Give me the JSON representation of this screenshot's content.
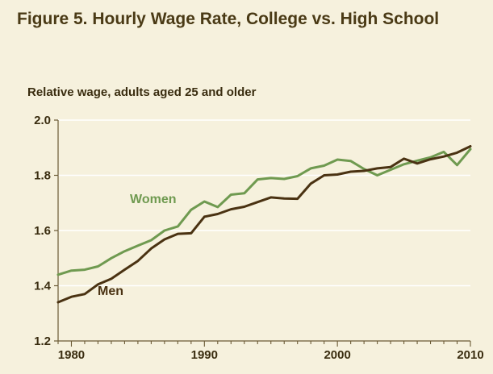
{
  "figure": {
    "title": "Figure 5. Hourly Wage Rate, College vs. High School"
  },
  "colors": {
    "background": "#f6f1dd",
    "women": "#6f9a50",
    "men": "#4a3212",
    "grid": "#ffffff",
    "axis": "#6b5a35"
  },
  "chart_data": {
    "type": "line",
    "title": "Figure 5. Hourly Wage Rate, College vs. High School",
    "ylabel": "Relative wage, adults aged 25 and older",
    "xlabel": "",
    "xlim": [
      1979,
      2010
    ],
    "ylim": [
      1.2,
      2.0
    ],
    "xticks": [
      1980,
      1990,
      2000,
      2010
    ],
    "xtick_labels": [
      "1980",
      "1990",
      "2000",
      "2010"
    ],
    "yticks": [
      1.2,
      1.4,
      1.6,
      1.8,
      2.0
    ],
    "ytick_labels": [
      "1.2",
      "1.4",
      "1.6",
      "1.8",
      "2.0"
    ],
    "grid": true,
    "x": [
      1979,
      1980,
      1981,
      1982,
      1983,
      1984,
      1985,
      1986,
      1987,
      1988,
      1989,
      1990,
      1991,
      1992,
      1993,
      1994,
      1995,
      1996,
      1997,
      1998,
      1999,
      2000,
      2001,
      2002,
      2003,
      2004,
      2005,
      2006,
      2007,
      2008,
      2009,
      2010
    ],
    "series": [
      {
        "name": "Women",
        "color": "#6f9a50",
        "values": [
          1.44,
          1.455,
          1.458,
          1.47,
          1.5,
          1.525,
          1.545,
          1.565,
          1.6,
          1.615,
          1.675,
          1.705,
          1.685,
          1.73,
          1.735,
          1.785,
          1.79,
          1.787,
          1.797,
          1.825,
          1.835,
          1.857,
          1.852,
          1.823,
          1.8,
          1.82,
          1.84,
          1.853,
          1.865,
          1.885,
          1.837,
          1.895
        ]
      },
      {
        "name": "Men",
        "color": "#4a3212",
        "values": [
          1.34,
          1.36,
          1.37,
          1.405,
          1.425,
          1.458,
          1.49,
          1.535,
          1.568,
          1.588,
          1.59,
          1.65,
          1.66,
          1.677,
          1.686,
          1.703,
          1.72,
          1.716,
          1.715,
          1.77,
          1.8,
          1.803,
          1.813,
          1.816,
          1.825,
          1.83,
          1.86,
          1.843,
          1.858,
          1.868,
          1.882,
          1.905
        ]
      }
    ]
  }
}
